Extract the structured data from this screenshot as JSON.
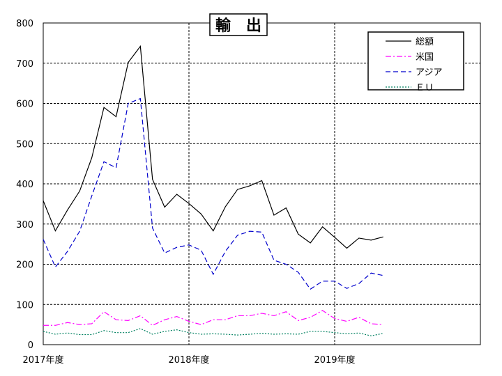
{
  "chart_data": {
    "type": "line",
    "title": "輸　出",
    "xlabel": "",
    "ylabel": "",
    "ylim": [
      0,
      800
    ],
    "y_ticks": [
      0,
      100,
      200,
      300,
      400,
      500,
      600,
      700,
      800
    ],
    "x_range": [
      0,
      36
    ],
    "x_tick_labels": [
      "2017年度",
      "2018年度",
      "2019年度"
    ],
    "x_tick_positions": [
      0,
      12,
      24
    ],
    "grid": true,
    "legend_position": "top-right",
    "series": [
      {
        "name": "総額",
        "color": "#000000",
        "style": "solid",
        "values": [
          358,
          283,
          335,
          382,
          465,
          590,
          567,
          702,
          742,
          411,
          342,
          374,
          351,
          325,
          283,
          343,
          386,
          395,
          408,
          322,
          340,
          275,
          253,
          293,
          267,
          240,
          265,
          260,
          268
        ]
      },
      {
        "name": "米国",
        "color": "#ff00ff",
        "style": "dashdot",
        "values": [
          48,
          48,
          55,
          50,
          52,
          82,
          62,
          60,
          72,
          48,
          62,
          70,
          58,
          50,
          62,
          62,
          72,
          72,
          78,
          72,
          82,
          60,
          68,
          85,
          65,
          58,
          68,
          52,
          50
        ]
      },
      {
        "name": "アジア",
        "color": "#0000cc",
        "style": "dashed",
        "values": [
          262,
          193,
          232,
          282,
          370,
          455,
          440,
          600,
          612,
          290,
          228,
          242,
          248,
          235,
          175,
          232,
          272,
          282,
          280,
          210,
          200,
          180,
          138,
          158,
          158,
          140,
          152,
          178,
          172
        ]
      },
      {
        "name": "ＥＵ",
        "color": "#008060",
        "style": "dotted",
        "values": [
          33,
          26,
          29,
          25,
          25,
          35,
          30,
          30,
          40,
          26,
          33,
          37,
          30,
          26,
          27,
          26,
          24,
          26,
          28,
          26,
          27,
          26,
          33,
          33,
          30,
          27,
          29,
          22,
          28
        ]
      }
    ]
  }
}
